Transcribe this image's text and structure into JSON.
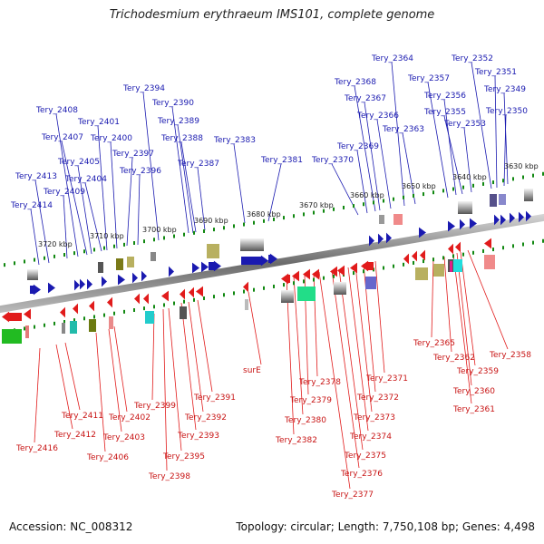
{
  "title": "Trichodesmium erythraeum IMS101, complete genome",
  "accession": "Accession: NC_008312",
  "summary": "Topology: circular; Length: 7,750,108 bp; Genes: 4,498",
  "colors": {
    "forward": "#1a1ab0",
    "reverse": "#e11b1b",
    "backbone": "#808080",
    "ticks": "#118811"
  },
  "kbp_labels": [
    "3720 kbp",
    "3710 kbp",
    "3700 kbp",
    "3690 kbp",
    "3680 kbp",
    "3670 kbp",
    "3660 kbp",
    "3650 kbp",
    "3640 kbp",
    "3630 kbp"
  ],
  "top_labels": [
    "Tery_2414",
    "Tery_2413",
    "Tery_2409",
    "Tery_2408",
    "Tery_2407",
    "Tery_2405",
    "Tery_2404",
    "Tery_2401",
    "Tery_2400",
    "Tery_2397",
    "Tery_2396",
    "Tery_2394",
    "Tery_2390",
    "Tery_2389",
    "Tery_2388",
    "Tery_2387",
    "Tery_2383",
    "Tery_2381",
    "Tery_2370",
    "Tery_2369",
    "Tery_2368",
    "Tery_2367",
    "Tery_2366",
    "Tery_2364",
    "Tery_2363",
    "Tery_2357",
    "Tery_2356",
    "Tery_2355",
    "Tery_2353",
    "Tery_2352",
    "Tery_2351",
    "Tery_2350",
    "Tery_2349"
  ],
  "bottom_labels": [
    "Tery_2416",
    "Tery_2412",
    "Tery_2411",
    "Tery_2406",
    "Tery_2403",
    "Tery_2402",
    "Tery_2399",
    "Tery_2398",
    "Tery_2395",
    "Tery_2393",
    "Tery_2392",
    "Tery_2391",
    "surE",
    "Tery_2382",
    "Tery_2380",
    "Tery_2379",
    "Tery_2378",
    "Tery_2377",
    "Tery_2376",
    "Tery_2375",
    "Tery_2374",
    "Tery_2373",
    "Tery_2372",
    "Tery_2371",
    "Tery_2365",
    "Tery_2362",
    "Tery_2361",
    "Tery_2360",
    "Tery_2359",
    "Tery_2358"
  ]
}
